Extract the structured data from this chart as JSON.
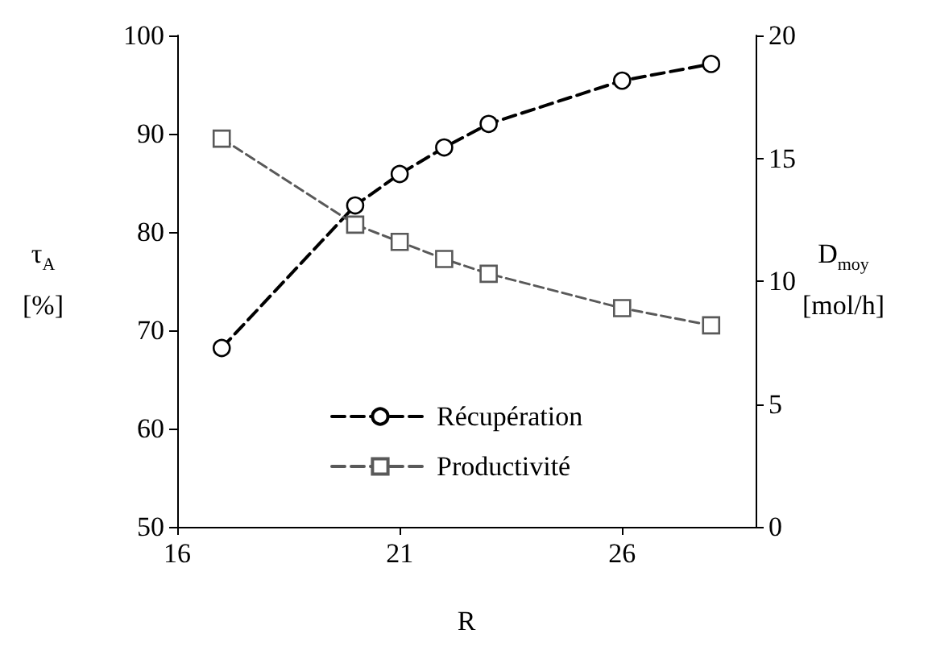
{
  "chart_data": {
    "type": "line",
    "xlabel": "R",
    "ylabel": "τ$_{A}$\n[%]",
    "y2label": "D$_{moy}$\n[mol/h]",
    "x": [
      17,
      20,
      21,
      22,
      23,
      26,
      28
    ],
    "series": [
      {
        "name": "Récupération",
        "color": "#000000",
        "marker": "circle",
        "values": [
          68.2,
          82.7,
          85.9,
          88.6,
          91.0,
          95.4,
          97.1
        ]
      },
      {
        "name": "Productivité",
        "color": "#595959",
        "marker": "square",
        "axis": "y2",
        "values": [
          15.8,
          12.3,
          11.6,
          10.9,
          10.3,
          8.9,
          8.2
        ]
      }
    ],
    "xlim": [
      16,
      29
    ],
    "xticks": [
      16,
      21,
      26
    ],
    "ylim": [
      50,
      100
    ],
    "yticks": [
      50,
      60,
      70,
      80,
      90,
      100
    ],
    "y2lim": [
      0,
      20
    ],
    "y2ticks": [
      0,
      5,
      10,
      15,
      20
    ],
    "grid": false,
    "legend": "bottom",
    "line_style": "dashed"
  }
}
